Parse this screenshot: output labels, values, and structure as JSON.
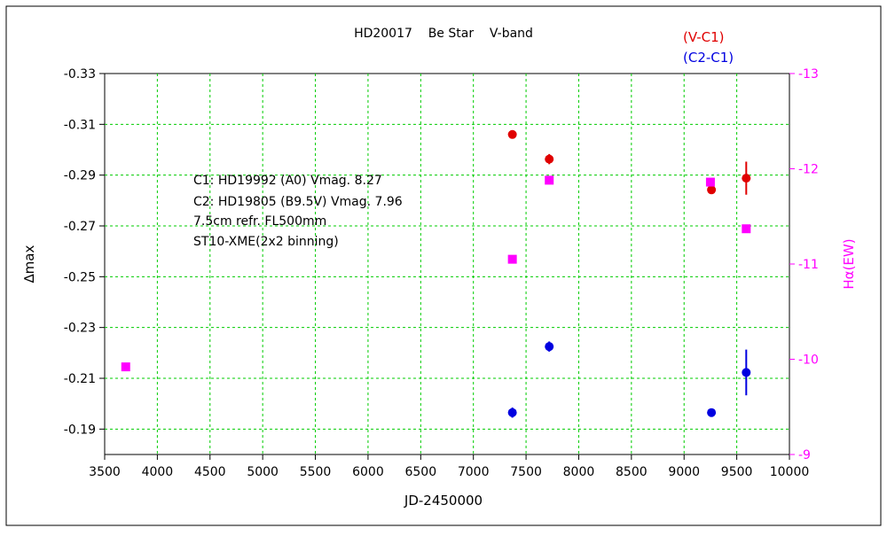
{
  "chart_data": {
    "type": "scatter",
    "title": "HD20017    Be Star    V-band",
    "xlabel": "JD-2450000",
    "ylabel_left": "∆max",
    "ylabel_right": "Hα(EW)",
    "xlim": [
      3500,
      10000
    ],
    "ylim_left": [
      -0.18,
      -0.33
    ],
    "ylim_right": [
      -9,
      -13
    ],
    "x_ticks": [
      "3500",
      "4000",
      "4500",
      "5000",
      "5500",
      "6000",
      "6500",
      "7000",
      "7500",
      "8000",
      "8500",
      "9000",
      "9500",
      "10000"
    ],
    "y_left_ticks": [
      "-0.33",
      "-0.31",
      "-0.29",
      "-0.27",
      "-0.25",
      "-0.23",
      "-0.21",
      "-0.19"
    ],
    "y_right_ticks": [
      "-13",
      "-12",
      "-11",
      "-10",
      "-9"
    ],
    "grid": true,
    "legend_position": "top-right",
    "legend": [
      {
        "label": "(V-C1)",
        "color": "#e00000"
      },
      {
        "label": "(C2-C1)",
        "color": "#0000e0"
      }
    ],
    "annotations": [
      "C1: HD19992 (A0) Vmag. 8.27",
      "C2: HD19805 (B9.5V) Vmag. 7.96",
      "7.5cm refr. FL500mm",
      "ST10-XME(2x2 binning)"
    ],
    "series": [
      {
        "name": "(V-C1)",
        "axis": "left",
        "marker": "circle",
        "color": "#e00000",
        "points": [
          {
            "x": 7370,
            "y": -0.306,
            "err": 0.0015
          },
          {
            "x": 7720,
            "y": -0.2963,
            "err": 0.002
          },
          {
            "x": 9260,
            "y": -0.2842,
            "err": 0.001
          },
          {
            "x": 9590,
            "y": -0.2888,
            "err": 0.0065
          }
        ]
      },
      {
        "name": "(C2-C1)",
        "axis": "left",
        "marker": "circle",
        "color": "#0000e0",
        "points": [
          {
            "x": 7370,
            "y": -0.1965,
            "err": 0.002
          },
          {
            "x": 7720,
            "y": -0.2225,
            "err": 0.002
          },
          {
            "x": 9260,
            "y": -0.1965,
            "err": 0.001
          },
          {
            "x": 9590,
            "y": -0.2123,
            "err": 0.009
          }
        ]
      },
      {
        "name": "",
        "axis": "right",
        "marker": "square",
        "color": "#ff00ff",
        "points": [
          {
            "x": 3700,
            "y": -9.92
          },
          {
            "x": 7370,
            "y": -11.05
          },
          {
            "x": 7720,
            "y": -11.88
          },
          {
            "x": 9250,
            "y": -11.86
          },
          {
            "x": 9590,
            "y": -11.37
          }
        ]
      }
    ]
  }
}
